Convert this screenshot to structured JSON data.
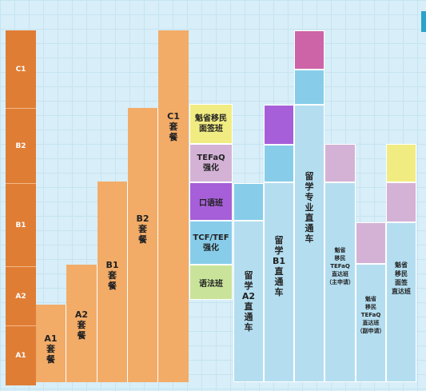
{
  "levels": [
    "C1",
    "B2",
    "B1",
    "A2",
    "A1"
  ],
  "packages": [
    {
      "label": "A1\n套\n餐"
    },
    {
      "label": "A2\n套\n餐"
    },
    {
      "label": "B1\n套\n餐"
    },
    {
      "label": "B2\n套\n餐"
    },
    {
      "label": "C1\n套\n餐"
    }
  ],
  "courses": {
    "interview": "魁省移民\n面签班",
    "tefaq": "TEFaQ\n强化",
    "oral": "口语班",
    "tcf": "TCF/TEF\n强化",
    "grammar": "语法班"
  },
  "tracks": {
    "a2_direct": "留\n学\nA2\n直\n通\n车",
    "b1_direct": "留\n学\nB1\n直\n通\n车",
    "major_direct": "留\n学\n专\n业\n直\n通\n车",
    "qc_tefaq_main": "魁省\n移民\nTEFaQ\n直达班\n（主申请）",
    "qc_tefaq_spouse": "魁省\n移民\nTEFaQ\n直达班\n（副申请）",
    "qc_interview": "魁省\n移民\n面签\n直达班"
  },
  "colors": {
    "level": "#e07d35",
    "package": "#f2ac68",
    "interview": "#f1ec82",
    "tefaq": "#d4b2d6",
    "oral": "#a65fd8",
    "tcf": "#87cdea",
    "grammar": "#c9e49a",
    "track": "#b4def0",
    "pink": "#cd64a8"
  }
}
